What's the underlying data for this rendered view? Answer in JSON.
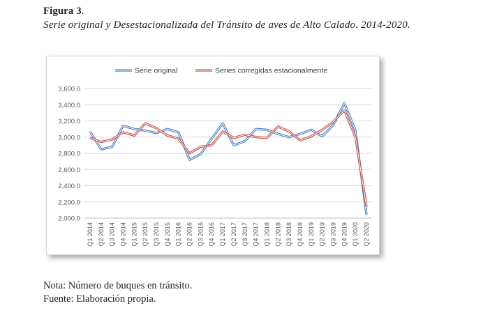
{
  "figure": {
    "label": "Figura 3",
    "label_suffix": ".",
    "subtitle": "Serie original y Desestacionalizada del Tránsito de aves de Alto Calado. 2014-2020."
  },
  "notes": {
    "note": "Nota: Número de buques en tránsito.",
    "source": "Fuente: Elaboración propia."
  },
  "chart_data": {
    "type": "line",
    "title": "",
    "xlabel": "",
    "ylabel": "",
    "ylim": [
      2000,
      3600
    ],
    "y_ticks": [
      2000,
      2200,
      2400,
      2600,
      2800,
      3000,
      3200,
      3400,
      3600
    ],
    "y_tick_labels": [
      "2,000.0",
      "2,200.0",
      "2,400.0",
      "2,600.0",
      "2,800.0",
      "3,000.0",
      "3,200.0",
      "3,400.0",
      "3,600.0"
    ],
    "grid": true,
    "legend_position": "top",
    "categories": [
      "Q1 2014",
      "Q2 2014",
      "Q3 2014",
      "Q4 2014",
      "Q1 2015",
      "Q2 2015",
      "Q3 2015",
      "Q4 2015",
      "Q1 2016",
      "Q2 2016",
      "Q3 2016",
      "Q4 2016",
      "Q1 2017",
      "Q2 2017",
      "Q3 2017",
      "Q4 2017",
      "Q1 2018",
      "Q2 2018",
      "Q3 2018",
      "Q4 2018",
      "Q1 2019",
      "Q2 2019",
      "Q3 2019",
      "Q4 2019",
      "Q1 2020",
      "Q2 2020"
    ],
    "series": [
      {
        "name": "Serie original",
        "color": "#4a7ebb",
        "values": [
          3070,
          2850,
          2880,
          3140,
          3100,
          3080,
          3050,
          3100,
          3060,
          2720,
          2790,
          2980,
          3170,
          2900,
          2950,
          3100,
          3090,
          3040,
          3000,
          3040,
          3090,
          3010,
          3150,
          3420,
          3080,
          2040
        ]
      },
      {
        "name": "Series corregidas estacionalmente",
        "color": "#c0504d",
        "values": [
          2990,
          2940,
          2970,
          3060,
          3020,
          3170,
          3110,
          3020,
          2980,
          2800,
          2880,
          2900,
          3070,
          2990,
          3030,
          3000,
          2990,
          3130,
          3070,
          2960,
          3010,
          3090,
          3190,
          3330,
          3000,
          2140
        ]
      }
    ]
  }
}
